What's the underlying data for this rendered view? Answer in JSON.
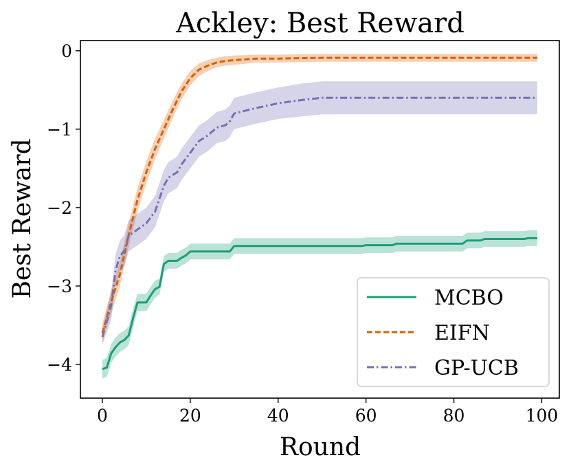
{
  "chart_data": {
    "type": "line",
    "title": "Ackley: Best Reward",
    "xlabel": "Round",
    "ylabel": "Best Reward",
    "xlim": [
      -5,
      104
    ],
    "ylim": [
      -4.43,
      0.13
    ],
    "xticks": [
      0,
      20,
      40,
      60,
      80,
      100
    ],
    "yticks": [
      0,
      -1,
      -2,
      -3,
      -4
    ],
    "xtick_labels": [
      "0",
      "20",
      "40",
      "60",
      "80",
      "100"
    ],
    "ytick_labels": [
      "0",
      "−1",
      "−2",
      "−3",
      "−4"
    ],
    "legend_position": "lower-right",
    "series": [
      {
        "name": "MCBO",
        "color": "#1b9e77",
        "dash": "solid",
        "x": [
          0,
          1,
          2,
          3,
          4,
          5,
          6,
          7,
          8,
          9,
          10,
          11,
          12,
          13,
          14,
          15,
          16,
          17,
          18,
          19,
          20,
          25,
          29,
          30,
          40,
          50,
          59,
          60,
          66,
          67,
          80,
          82,
          83,
          86,
          87,
          96,
          97,
          99
        ],
        "y": [
          -4.06,
          -4.04,
          -3.86,
          -3.78,
          -3.72,
          -3.69,
          -3.63,
          -3.41,
          -3.21,
          -3.21,
          -3.21,
          -3.12,
          -3.04,
          -3.01,
          -2.72,
          -2.68,
          -2.68,
          -2.68,
          -2.64,
          -2.61,
          -2.56,
          -2.56,
          -2.56,
          -2.49,
          -2.49,
          -2.49,
          -2.49,
          -2.48,
          -2.48,
          -2.46,
          -2.46,
          -2.46,
          -2.42,
          -2.42,
          -2.4,
          -2.4,
          -2.39,
          -2.39
        ],
        "band": [
          0.12,
          0.12,
          0.12,
          0.12,
          0.12,
          0.12,
          0.12,
          0.12,
          0.11,
          0.11,
          0.11,
          0.11,
          0.11,
          0.1,
          0.1,
          0.1,
          0.1,
          0.1,
          0.1,
          0.1,
          0.1,
          0.1,
          0.1,
          0.1,
          0.1,
          0.1,
          0.1,
          0.1,
          0.1,
          0.1,
          0.1,
          0.1,
          0.1,
          0.1,
          0.1,
          0.1,
          0.1,
          0.1
        ]
      },
      {
        "name": "EIFN",
        "color": "#d95f02",
        "dash": "dashed",
        "x": [
          0,
          2,
          4,
          6,
          8,
          10,
          12,
          14,
          16,
          18,
          20,
          22,
          24,
          26,
          28,
          30,
          35,
          40,
          50,
          60,
          70,
          80,
          90,
          99
        ],
        "y": [
          -3.6,
          -3.2,
          -2.85,
          -2.35,
          -1.9,
          -1.55,
          -1.25,
          -1.0,
          -0.75,
          -0.52,
          -0.35,
          -0.24,
          -0.19,
          -0.15,
          -0.13,
          -0.12,
          -0.1,
          -0.1,
          -0.09,
          -0.09,
          -0.09,
          -0.09,
          -0.09,
          -0.09
        ],
        "band": [
          0.12,
          0.15,
          0.15,
          0.15,
          0.15,
          0.14,
          0.13,
          0.12,
          0.11,
          0.1,
          0.09,
          0.08,
          0.07,
          0.06,
          0.06,
          0.06,
          0.05,
          0.05,
          0.05,
          0.05,
          0.05,
          0.05,
          0.05,
          0.05
        ]
      },
      {
        "name": "GP-UCB",
        "color": "#7570b3",
        "dash": "dashdot",
        "x": [
          0,
          2,
          3,
          4,
          5,
          6,
          8,
          10,
          12,
          14,
          15,
          17,
          18,
          20,
          22,
          24,
          26,
          28,
          29,
          30,
          35,
          40,
          45,
          50,
          60,
          70,
          80,
          90,
          99
        ],
        "y": [
          -3.65,
          -3.25,
          -2.8,
          -2.62,
          -2.55,
          -2.36,
          -2.28,
          -2.2,
          -2.05,
          -1.72,
          -1.62,
          -1.55,
          -1.45,
          -1.3,
          -1.15,
          -1.08,
          -0.98,
          -0.95,
          -0.9,
          -0.8,
          -0.73,
          -0.67,
          -0.63,
          -0.6,
          -0.6,
          -0.6,
          -0.6,
          -0.6,
          -0.6
        ],
        "band": [
          0.1,
          0.18,
          0.2,
          0.2,
          0.2,
          0.2,
          0.2,
          0.2,
          0.2,
          0.2,
          0.2,
          0.2,
          0.2,
          0.2,
          0.2,
          0.2,
          0.2,
          0.2,
          0.2,
          0.2,
          0.2,
          0.2,
          0.21,
          0.21,
          0.21,
          0.21,
          0.21,
          0.21,
          0.21
        ]
      }
    ]
  }
}
